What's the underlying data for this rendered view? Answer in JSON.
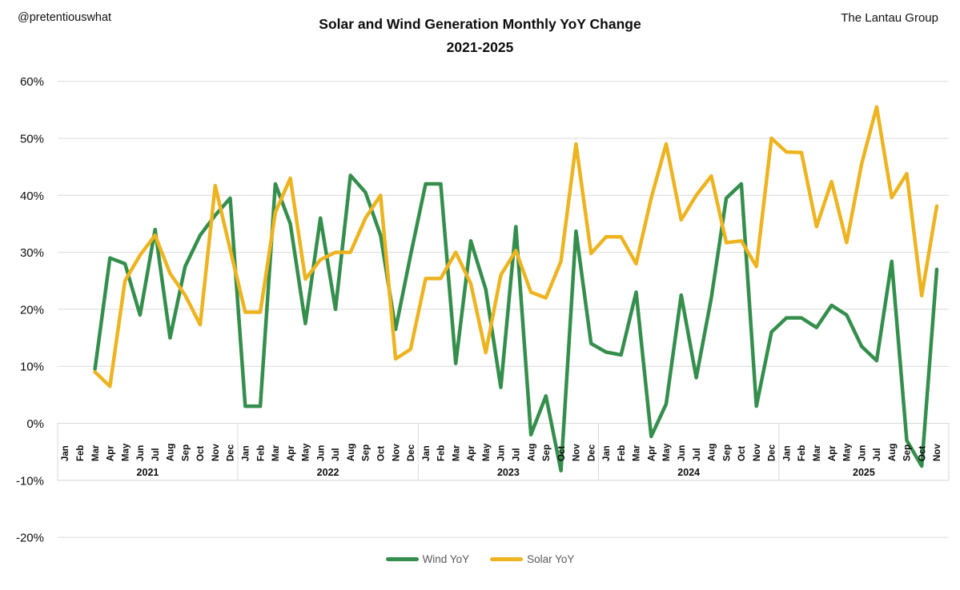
{
  "header": {
    "watermark": "@pretentiouswhat",
    "brand": "The Lantau Group",
    "title_line1": "Solar and Wind Generation Monthly YoY Change",
    "title_line2": "2021-2025"
  },
  "legend": {
    "items": [
      {
        "label": "Wind YoY",
        "color": "#348E4C"
      },
      {
        "label": "Solar YoY",
        "color": "#EDB420"
      }
    ]
  },
  "chart_data": {
    "type": "line",
    "title": "Solar and Wind Generation Monthly YoY Change 2021-2025",
    "xlabel": "",
    "ylabel": "",
    "ylim": [
      -20,
      60
    ],
    "grid": true,
    "legend_position": "bottom",
    "y_ticks": [
      "60%",
      "50%",
      "40%",
      "30%",
      "20%",
      "10%",
      "0%",
      "-10%",
      "-20%"
    ],
    "month_names": [
      "Jan",
      "Feb",
      "Mar",
      "Apr",
      "May",
      "Jun",
      "Jul",
      "Aug",
      "Sep",
      "Oct",
      "Nov",
      "Dec"
    ],
    "years": [
      {
        "label": "2021",
        "n": 12
      },
      {
        "label": "2022",
        "n": 12
      },
      {
        "label": "2023",
        "n": 12
      },
      {
        "label": "2024",
        "n": 12
      },
      {
        "label": "2025",
        "n": 11
      }
    ],
    "grid_color": "#D9D9D9",
    "series": [
      {
        "name": "Wind YoY",
        "color": "#348E4C",
        "values": [
          null,
          null,
          9.5,
          29,
          28,
          19,
          34,
          15,
          27.5,
          33,
          36.5,
          39.5,
          3,
          3,
          42,
          35,
          17.5,
          36,
          20,
          43.5,
          40.5,
          33,
          16.5,
          29.5,
          42,
          42,
          10.5,
          32,
          23.5,
          6.3,
          34.5,
          -2,
          4.8,
          -8.3,
          33.7,
          14,
          12.5,
          12,
          23,
          -2.3,
          3.4,
          22.5,
          8,
          22,
          39.5,
          42,
          3,
          16,
          18.5,
          18.5,
          16.8,
          20.7,
          19,
          13.5,
          11,
          28.4,
          -3,
          -7.5,
          27
        ]
      },
      {
        "name": "Solar YoY",
        "color": "#EDB420",
        "values": [
          null,
          null,
          9,
          6.5,
          25,
          29.5,
          33,
          26.3,
          22.5,
          17.3,
          41.7,
          30.5,
          19.5,
          19.5,
          37,
          43,
          25.3,
          28.7,
          30,
          30,
          36,
          40,
          11.3,
          13,
          25.4,
          25.4,
          30,
          24.5,
          12.4,
          26,
          30.3,
          23,
          22,
          28.4,
          49,
          29.8,
          32.7,
          32.7,
          28,
          39.5,
          49,
          35.7,
          40,
          43.4,
          31.7,
          32,
          27.5,
          50,
          47.6,
          47.5,
          34.5,
          42.4,
          31.7,
          45.5,
          55.5,
          39.6,
          43.8,
          22.4,
          38.1
        ]
      }
    ]
  }
}
